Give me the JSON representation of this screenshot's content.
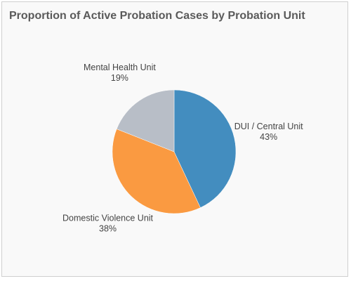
{
  "chart_data": {
    "type": "pie",
    "title": "Proportion of Active Probation Cases by Probation Unit",
    "slices": [
      {
        "label": "DUI / Central Unit",
        "value": 43,
        "display": "43%",
        "color": "#438dbf"
      },
      {
        "label": "Domestic Violence Unit",
        "value": 38,
        "display": "38%",
        "color": "#fa9a41"
      },
      {
        "label": "Mental Health Unit",
        "value": 19,
        "display": "19%",
        "color": "#b8bec7"
      }
    ],
    "start_angle_deg": 0,
    "direction": "clockwise",
    "legend": "none",
    "labels": "outside"
  }
}
